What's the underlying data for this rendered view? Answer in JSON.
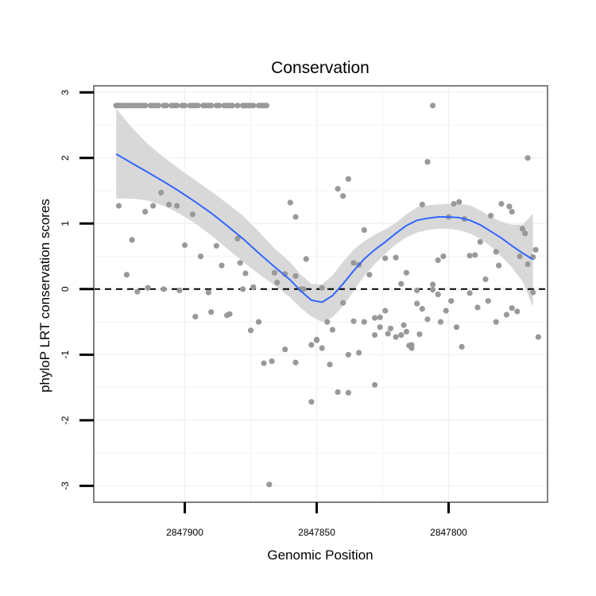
{
  "chart_data": {
    "type": "scatter",
    "title": "Conservation",
    "xlabel": "Genomic Position",
    "ylabel": "phyloP LRT conservation scores",
    "xlim": [
      2847934.5,
      2847762.5
    ],
    "ylim": [
      -3.25,
      3.1
    ],
    "x_reversed": true,
    "xticks": [
      2847900,
      2847850,
      2847800
    ],
    "xtick_labels": [
      "2847900",
      "2847850",
      "2847800"
    ],
    "yticks": [
      -3,
      -2,
      -1,
      0,
      1,
      2,
      3
    ],
    "ytick_labels": [
      "-3",
      "-2",
      "-1",
      "0",
      "1",
      "2",
      "3"
    ],
    "reference_line": {
      "y": 0,
      "style": "dashed"
    },
    "colors": {
      "points": "#999999",
      "smooth": "#3366ff",
      "band": "#d4d4d4",
      "panel_border": "#7f7f7f",
      "grid": "#f2f2f2"
    },
    "points": {
      "x": [
        2847926,
        2847925,
        2847924,
        2847923,
        2847922,
        2847921,
        2847920,
        2847919,
        2847918,
        2847917,
        2847916,
        2847915,
        2847913,
        2847912,
        2847911,
        2847910,
        2847908,
        2847907,
        2847905,
        2847904,
        2847903,
        2847901,
        2847900,
        2847898,
        2847897,
        2847896,
        2847895,
        2847893,
        2847892,
        2847891,
        2847890,
        2847888,
        2847887,
        2847885,
        2847884,
        2847883,
        2847882,
        2847880,
        2847878,
        2847877,
        2847876,
        2847875,
        2847874,
        2847872,
        2847871,
        2847870,
        2847869,
        2847925,
        2847920,
        2847915,
        2847912,
        2847909,
        2847906,
        2847903,
        2847900,
        2847897,
        2847894,
        2847891,
        2847888,
        2847886,
        2847883,
        2847880,
        2847877,
        2847874,
        2847872,
        2847870,
        2847867,
        2847865,
        2847862,
        2847860,
        2847858,
        2847856,
        2847854,
        2847852,
        2847850,
        2847848,
        2847846,
        2847844,
        2847842,
        2847840,
        2847838,
        2847836,
        2847834,
        2847832,
        2847830,
        2847828,
        2847826,
        2847824,
        2847822,
        2847820,
        2847818,
        2847816,
        2847814,
        2847812,
        2847810,
        2847808,
        2847806,
        2847804,
        2847802,
        2847800,
        2847798,
        2847796,
        2847794,
        2847792,
        2847790,
        2847788,
        2847786,
        2847784,
        2847782,
        2847780,
        2847778,
        2847776,
        2847774,
        2847772,
        2847770,
        2847768,
        2847922,
        2847918,
        2847914,
        2847908,
        2847902,
        2847896,
        2847890,
        2847884,
        2847878,
        2847866,
        2847862,
        2847858,
        2847852,
        2847848,
        2847845,
        2847842,
        2847838,
        2847834,
        2847828,
        2847823,
        2847818,
        2847816,
        2847814,
        2847812,
        2847810,
        2847808,
        2847806,
        2847804,
        2847799,
        2847792,
        2847782,
        2847776,
        2847768,
        2847766,
        2847770,
        2847777,
        2847806,
        2847817,
        2847824,
        2847838,
        2847850,
        2847868,
        2847875,
        2847879,
        2847858,
        2847855,
        2847840,
        2847836,
        2847832,
        2847828,
        2847826,
        2847820,
        2847815,
        2847811,
        2847803,
        2847801,
        2847797,
        2847795,
        2847789,
        2847785,
        2847781,
        2847773,
        2847771,
        2847767
      ],
      "y": [
        2.8,
        2.8,
        2.8,
        2.8,
        2.8,
        2.8,
        2.8,
        2.8,
        2.8,
        2.8,
        2.8,
        2.8,
        2.8,
        2.8,
        2.8,
        2.8,
        2.8,
        2.8,
        2.8,
        2.8,
        2.8,
        2.8,
        2.8,
        2.8,
        2.8,
        2.8,
        2.8,
        2.8,
        2.8,
        2.8,
        2.8,
        2.8,
        2.8,
        2.8,
        2.8,
        2.8,
        2.8,
        2.8,
        2.8,
        2.8,
        2.8,
        2.8,
        2.8,
        2.8,
        2.8,
        2.8,
        2.8,
        1.27,
        0.75,
        1.18,
        1.27,
        1.47,
        1.29,
        1.27,
        0.67,
        1.14,
        0.5,
        -0.05,
        0.66,
        0.36,
        -0.38,
        0.77,
        0.24,
        0.03,
        -0.5,
        -1.13,
        -1.1,
        0.1,
        -0.92,
        1.32,
        1.1,
        0.0,
        0.46,
        -0.85,
        -0.77,
        0.02,
        -0.5,
        -0.62,
        1.53,
        1.42,
        1.68,
        0.4,
        0.37,
        0.9,
        0.22,
        -0.7,
        -0.43,
        -0.33,
        -0.6,
        0.48,
        0.08,
        0.25,
        -0.85,
        -0.22,
        1.29,
        1.94,
        0.07,
        -0.08,
        0.5,
        1.1,
        1.3,
        1.33,
        1.07,
        -0.06,
        0.52,
        0.72,
        0.15,
        1.12,
        0.57,
        1.3,
        -0.39,
        1.18,
        -0.34,
        0.92,
        0.38,
        0.49,
        0.22,
        -0.04,
        0.02,
        0.0,
        -0.02,
        -0.42,
        -0.35,
        -0.4,
        0.0,
        0.25,
        0.23,
        -1.12,
        -1.72,
        -0.9,
        -1.15,
        -1.57,
        -1.58,
        -0.97,
        -1.46,
        -0.68,
        -0.7,
        -0.65,
        -0.9,
        -0.02,
        -0.3,
        -0.46,
        -0.01,
        0.44,
        -0.18,
        0.51,
        -0.5,
        -0.29,
        -0.05,
        -0.73,
        2.0,
        1.26,
        2.8,
        -0.55,
        0.47,
        -1.0,
        -0.78,
        -2.98,
        -0.63,
        0.4,
        0.2,
        0.0,
        -0.21,
        -0.49,
        -0.5,
        -0.44,
        -0.58,
        -0.73,
        -0.86,
        -0.69,
        -0.5,
        -0.33,
        -0.58,
        -0.88,
        -0.28,
        -0.18,
        0.36,
        0.5,
        0.85,
        0.6
      ]
    },
    "smooth": {
      "x": [
        2847926,
        2847920,
        2847914,
        2847908,
        2847902,
        2847896,
        2847890,
        2847884,
        2847878,
        2847872,
        2847866,
        2847860,
        2847856,
        2847852,
        2847848,
        2847844,
        2847840,
        2847836,
        2847832,
        2847828,
        2847824,
        2847820,
        2847816,
        2847812,
        2847808,
        2847804,
        2847800,
        2847796,
        2847792,
        2847788,
        2847784,
        2847780,
        2847776,
        2847772,
        2847768
      ],
      "y": [
        2.06,
        1.92,
        1.78,
        1.64,
        1.49,
        1.33,
        1.16,
        0.97,
        0.77,
        0.55,
        0.34,
        0.14,
        -0.03,
        -0.17,
        -0.2,
        -0.1,
        0.08,
        0.28,
        0.46,
        0.6,
        0.72,
        0.85,
        0.97,
        1.05,
        1.08,
        1.1,
        1.1,
        1.09,
        1.05,
        0.98,
        0.88,
        0.78,
        0.66,
        0.55,
        0.45
      ],
      "lower": [
        1.38,
        1.38,
        1.35,
        1.27,
        1.15,
        1.0,
        0.82,
        0.62,
        0.42,
        0.23,
        0.06,
        -0.13,
        -0.29,
        -0.42,
        -0.5,
        -0.43,
        -0.26,
        -0.03,
        0.2,
        0.38,
        0.54,
        0.68,
        0.79,
        0.86,
        0.9,
        0.92,
        0.92,
        0.9,
        0.85,
        0.77,
        0.65,
        0.5,
        0.33,
        0.12,
        -0.27
      ],
      "upper": [
        2.75,
        2.46,
        2.21,
        2.01,
        1.83,
        1.66,
        1.49,
        1.31,
        1.12,
        0.88,
        0.62,
        0.41,
        0.22,
        0.08,
        0.07,
        0.21,
        0.42,
        0.6,
        0.73,
        0.83,
        0.91,
        1.01,
        1.14,
        1.25,
        1.28,
        1.29,
        1.3,
        1.3,
        1.28,
        1.2,
        1.1,
        1.03,
        0.98,
        0.98,
        1.15
      ]
    }
  }
}
